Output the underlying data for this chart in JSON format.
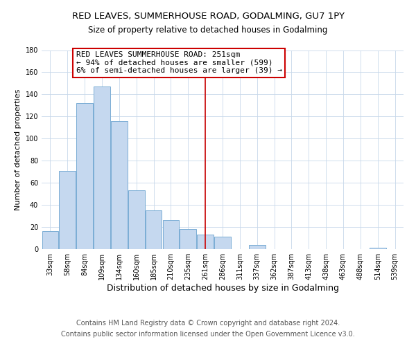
{
  "title": "RED LEAVES, SUMMERHOUSE ROAD, GODALMING, GU7 1PY",
  "subtitle": "Size of property relative to detached houses in Godalming",
  "xlabel": "Distribution of detached houses by size in Godalming",
  "ylabel": "Number of detached properties",
  "bar_labels": [
    "33sqm",
    "58sqm",
    "84sqm",
    "109sqm",
    "134sqm",
    "160sqm",
    "185sqm",
    "210sqm",
    "235sqm",
    "261sqm",
    "286sqm",
    "311sqm",
    "337sqm",
    "362sqm",
    "387sqm",
    "413sqm",
    "438sqm",
    "463sqm",
    "488sqm",
    "514sqm",
    "539sqm"
  ],
  "bar_values": [
    16,
    71,
    132,
    147,
    116,
    53,
    35,
    26,
    18,
    13,
    11,
    0,
    4,
    0,
    0,
    0,
    0,
    0,
    0,
    1,
    0
  ],
  "bar_color": "#c5d8ef",
  "bar_edge_color": "#7aadd4",
  "ylim": [
    0,
    180
  ],
  "yticks": [
    0,
    20,
    40,
    60,
    80,
    100,
    120,
    140,
    160,
    180
  ],
  "vline_x": 9.0,
  "vline_color": "#cc0000",
  "annotation_line1": "RED LEAVES SUMMERHOUSE ROAD: 251sqm",
  "annotation_line2": "← 94% of detached houses are smaller (599)",
  "annotation_line3": "6% of semi-detached houses are larger (39) →",
  "annotation_box_color": "#ffffff",
  "annotation_box_edge": "#cc0000",
  "footer1": "Contains HM Land Registry data © Crown copyright and database right 2024.",
  "footer2": "Contains public sector information licensed under the Open Government Licence v3.0.",
  "title_fontsize": 9.5,
  "subtitle_fontsize": 8.5,
  "xlabel_fontsize": 9,
  "ylabel_fontsize": 8,
  "footer_fontsize": 7,
  "annotation_fontsize": 8,
  "tick_fontsize": 7,
  "bg_color": "#e8eef5",
  "fig_bg": "#ffffff"
}
